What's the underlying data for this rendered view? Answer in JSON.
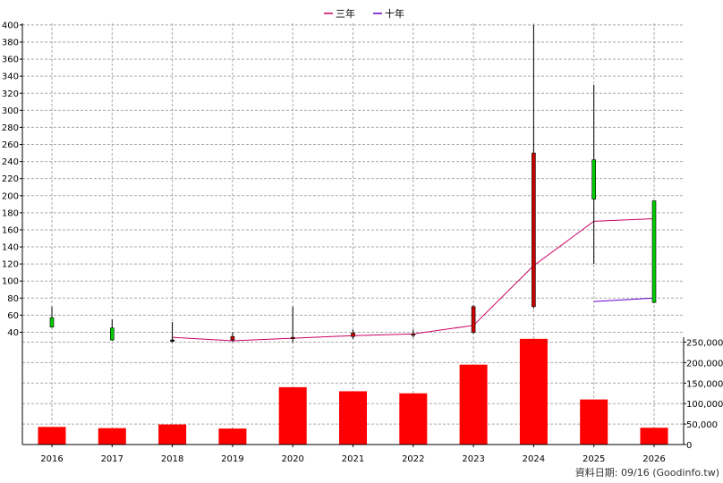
{
  "legend": {
    "items": [
      {
        "label": "三年",
        "color": "#cc0066"
      },
      {
        "label": "十年",
        "color": "#6600cc"
      }
    ]
  },
  "footer": {
    "text": "資料日期: 09/16 (Goodinfo.tw)"
  },
  "chart_data": [
    {
      "type": "candlestick",
      "categories": [
        "2016",
        "2017",
        "2018",
        "2019",
        "2020",
        "2021",
        "2022",
        "2023",
        "2024",
        "2025",
        "2026"
      ],
      "ylim": [
        30,
        402
      ],
      "yticks": [
        40,
        60,
        80,
        100,
        120,
        140,
        160,
        180,
        200,
        220,
        240,
        260,
        280,
        300,
        320,
        340,
        360,
        380,
        400
      ],
      "grid": true,
      "legend_position": "top-center",
      "candles": [
        {
          "open": 46,
          "close": 57,
          "high": 70,
          "low": 46,
          "direction": "up"
        },
        {
          "open": 31,
          "close": 45,
          "high": 55,
          "low": 30,
          "direction": "up"
        },
        {
          "open": 31,
          "close": 31,
          "high": 52,
          "low": 28,
          "direction": "flat"
        },
        {
          "open": 35,
          "close": 31,
          "high": 40,
          "low": 29,
          "direction": "down"
        },
        {
          "open": 34,
          "close": 33,
          "high": 70,
          "low": 28,
          "direction": "down"
        },
        {
          "open": 39,
          "close": 35,
          "high": 43,
          "low": 32,
          "direction": "down"
        },
        {
          "open": 38,
          "close": 37,
          "high": 43,
          "low": 34,
          "direction": "down"
        },
        {
          "open": 70,
          "close": 40,
          "high": 72,
          "low": 38,
          "direction": "down"
        },
        {
          "open": 250,
          "close": 70,
          "high": 400,
          "low": 68,
          "direction": "down"
        },
        {
          "open": 196,
          "close": 242,
          "high": 330,
          "low": 120,
          "direction": "up"
        },
        {
          "open": 75,
          "close": 194,
          "high": 194,
          "low": 74,
          "direction": "up"
        }
      ],
      "series": [
        {
          "name": "三年",
          "color": "#cc0066",
          "values": [
            null,
            null,
            34,
            30,
            33,
            36,
            38,
            48,
            118,
            170,
            173
          ]
        },
        {
          "name": "十年",
          "color": "#6600cc",
          "values": [
            null,
            null,
            null,
            null,
            null,
            null,
            null,
            null,
            null,
            76,
            80
          ]
        }
      ]
    },
    {
      "type": "bar",
      "categories": [
        "2016",
        "2017",
        "2018",
        "2019",
        "2020",
        "2021",
        "2022",
        "2023",
        "2024",
        "2025",
        "2026"
      ],
      "values": [
        43000,
        40000,
        49000,
        39000,
        140000,
        130000,
        125000,
        195000,
        258000,
        110000,
        41000
      ],
      "ylim": [
        0,
        262000
      ],
      "yticks": [
        0,
        50000,
        100000,
        150000,
        200000,
        250000
      ],
      "ytick_labels": [
        "0",
        "50,000",
        "100,000",
        "150,000",
        "200,000",
        "250,000"
      ],
      "bar_color": "#ff0000",
      "grid": true
    }
  ]
}
